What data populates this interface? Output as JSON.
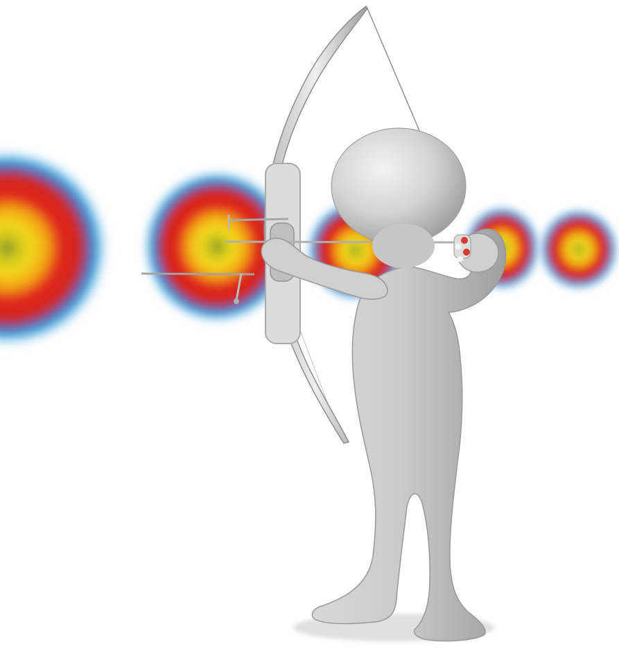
{
  "scene": {
    "background": "#ffffff",
    "figure_color": "#c9c9c9",
    "target_colors": {
      "outer": "#39a6df",
      "mid": "#e0261f",
      "inner": "#f4d91c",
      "center": "#8a9a2a"
    },
    "elements": {
      "targets": [
        "target-1",
        "target-2",
        "target-3",
        "target-4",
        "target-5"
      ],
      "arrows": [
        "arrow-1",
        "arrow-2",
        "arrow-3"
      ],
      "figure": "archer-figure",
      "bow": "recurve-bow"
    }
  }
}
